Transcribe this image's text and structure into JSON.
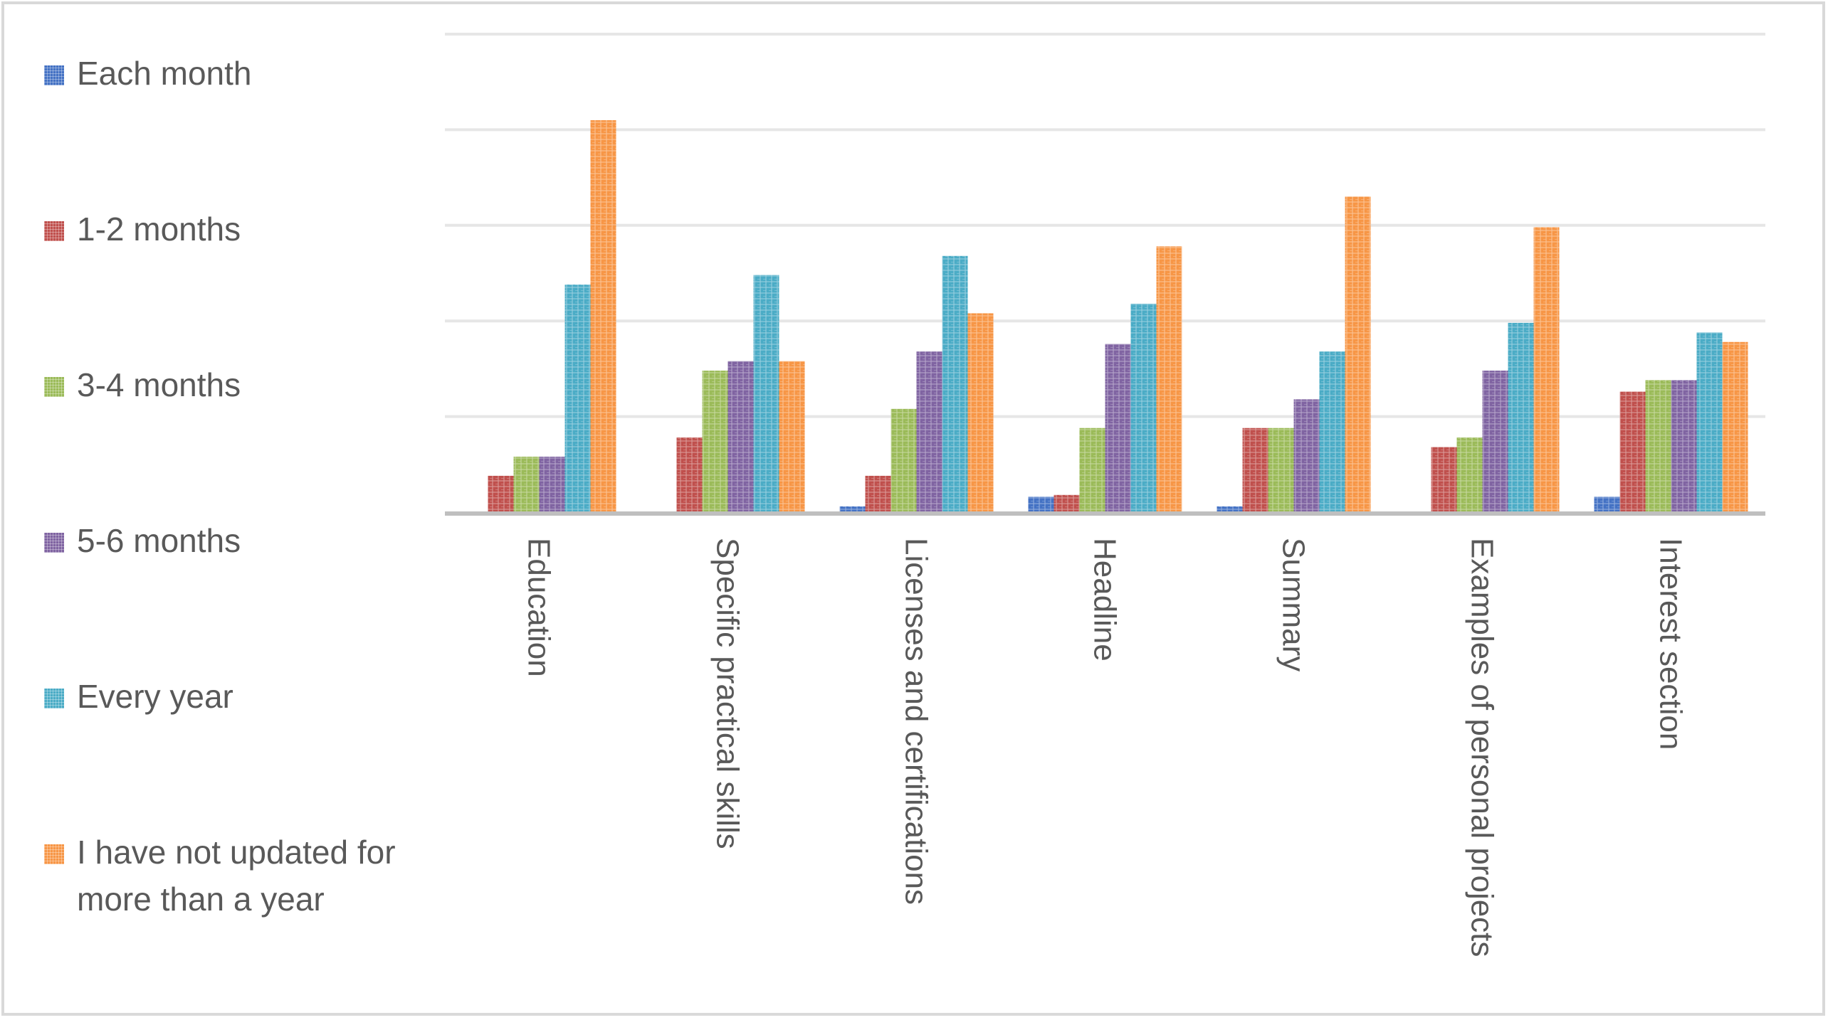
{
  "chart_data": {
    "type": "bar",
    "categories": [
      "Education",
      "Specific practical skills",
      "Licenses and certifications",
      "Headline",
      "Summary",
      "Examples of personal projects",
      "Interest section"
    ],
    "series": [
      {
        "name": "Each month",
        "color": "#4472C4",
        "values": [
          0,
          0,
          0.3,
          0.8,
          0.3,
          0,
          0.8
        ]
      },
      {
        "name": "1-2 months",
        "color": "#C0504D",
        "values": [
          1.9,
          3.9,
          1.9,
          0.9,
          4.4,
          3.4,
          6.3
        ]
      },
      {
        "name": "3-4 months",
        "color": "#9BBB59",
        "values": [
          2.9,
          7.4,
          5.4,
          4.4,
          4.4,
          3.9,
          6.9
        ]
      },
      {
        "name": "5-6 months",
        "color": "#8064A2",
        "values": [
          2.9,
          7.9,
          8.4,
          8.8,
          5.9,
          7.4,
          6.9
        ]
      },
      {
        "name": "Every year",
        "color": "#4BACC6",
        "values": [
          11.9,
          12.4,
          13.4,
          10.9,
          8.4,
          9.9,
          9.4
        ]
      },
      {
        "name": "I have not updated for more than a year",
        "color": "#F79646",
        "values": [
          20.5,
          7.9,
          10.4,
          13.9,
          16.5,
          14.9,
          8.9
        ]
      }
    ],
    "ylim": [
      0,
      25
    ],
    "gridlines": [
      5,
      10,
      15,
      20,
      25
    ],
    "grid": true,
    "legend_position": "left"
  }
}
